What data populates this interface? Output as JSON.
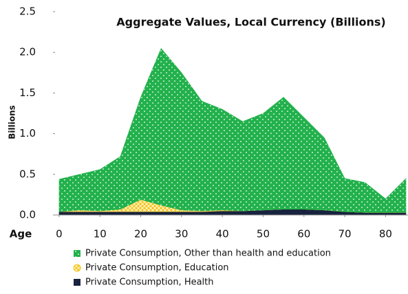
{
  "chart_data": {
    "type": "stacked_area",
    "title": "Aggregate Values, Local Currency (Billions)",
    "x_label": "Age",
    "y_label": "Billions",
    "x": [
      0,
      5,
      10,
      15,
      20,
      25,
      30,
      35,
      40,
      45,
      50,
      55,
      60,
      65,
      70,
      75,
      80,
      85
    ],
    "series": [
      {
        "name": "Private Consumption, Health",
        "color": "#17233f",
        "values": [
          0.04,
          0.04,
          0.04,
          0.04,
          0.04,
          0.04,
          0.04,
          0.04,
          0.05,
          0.05,
          0.06,
          0.07,
          0.07,
          0.06,
          0.04,
          0.03,
          0.03,
          0.03
        ]
      },
      {
        "name": "Private Consumption, Education",
        "color": "#f5c518",
        "values": [
          0,
          0.02,
          0.01,
          0.03,
          0.15,
          0.08,
          0.02,
          0.01,
          0.01,
          0,
          0,
          0,
          0,
          0,
          0,
          0,
          0,
          0
        ]
      },
      {
        "name": "Private Consumption, Other than health and education",
        "color": "#22b14c",
        "values": [
          0.4,
          0.44,
          0.51,
          0.65,
          1.26,
          1.93,
          1.69,
          1.35,
          1.24,
          1.1,
          1.19,
          1.38,
          1.13,
          0.89,
          0.41,
          0.37,
          0.17,
          0.42
        ]
      }
    ],
    "xlim": [
      -1,
      85.5
    ],
    "xticks": [
      0,
      10,
      20,
      30,
      40,
      50,
      60,
      70,
      80
    ],
    "ylim": [
      0,
      2.5
    ],
    "yticks": [
      {
        "value": 0,
        "label": "0.0"
      },
      {
        "value": 0.5,
        "label": "0.5"
      },
      {
        "value": 1,
        "label": "1.0"
      },
      {
        "value": 1.5,
        "label": "1.5"
      },
      {
        "value": 2,
        "label": "2.0"
      },
      {
        "value": 2.5,
        "label": "2.5"
      }
    ]
  }
}
